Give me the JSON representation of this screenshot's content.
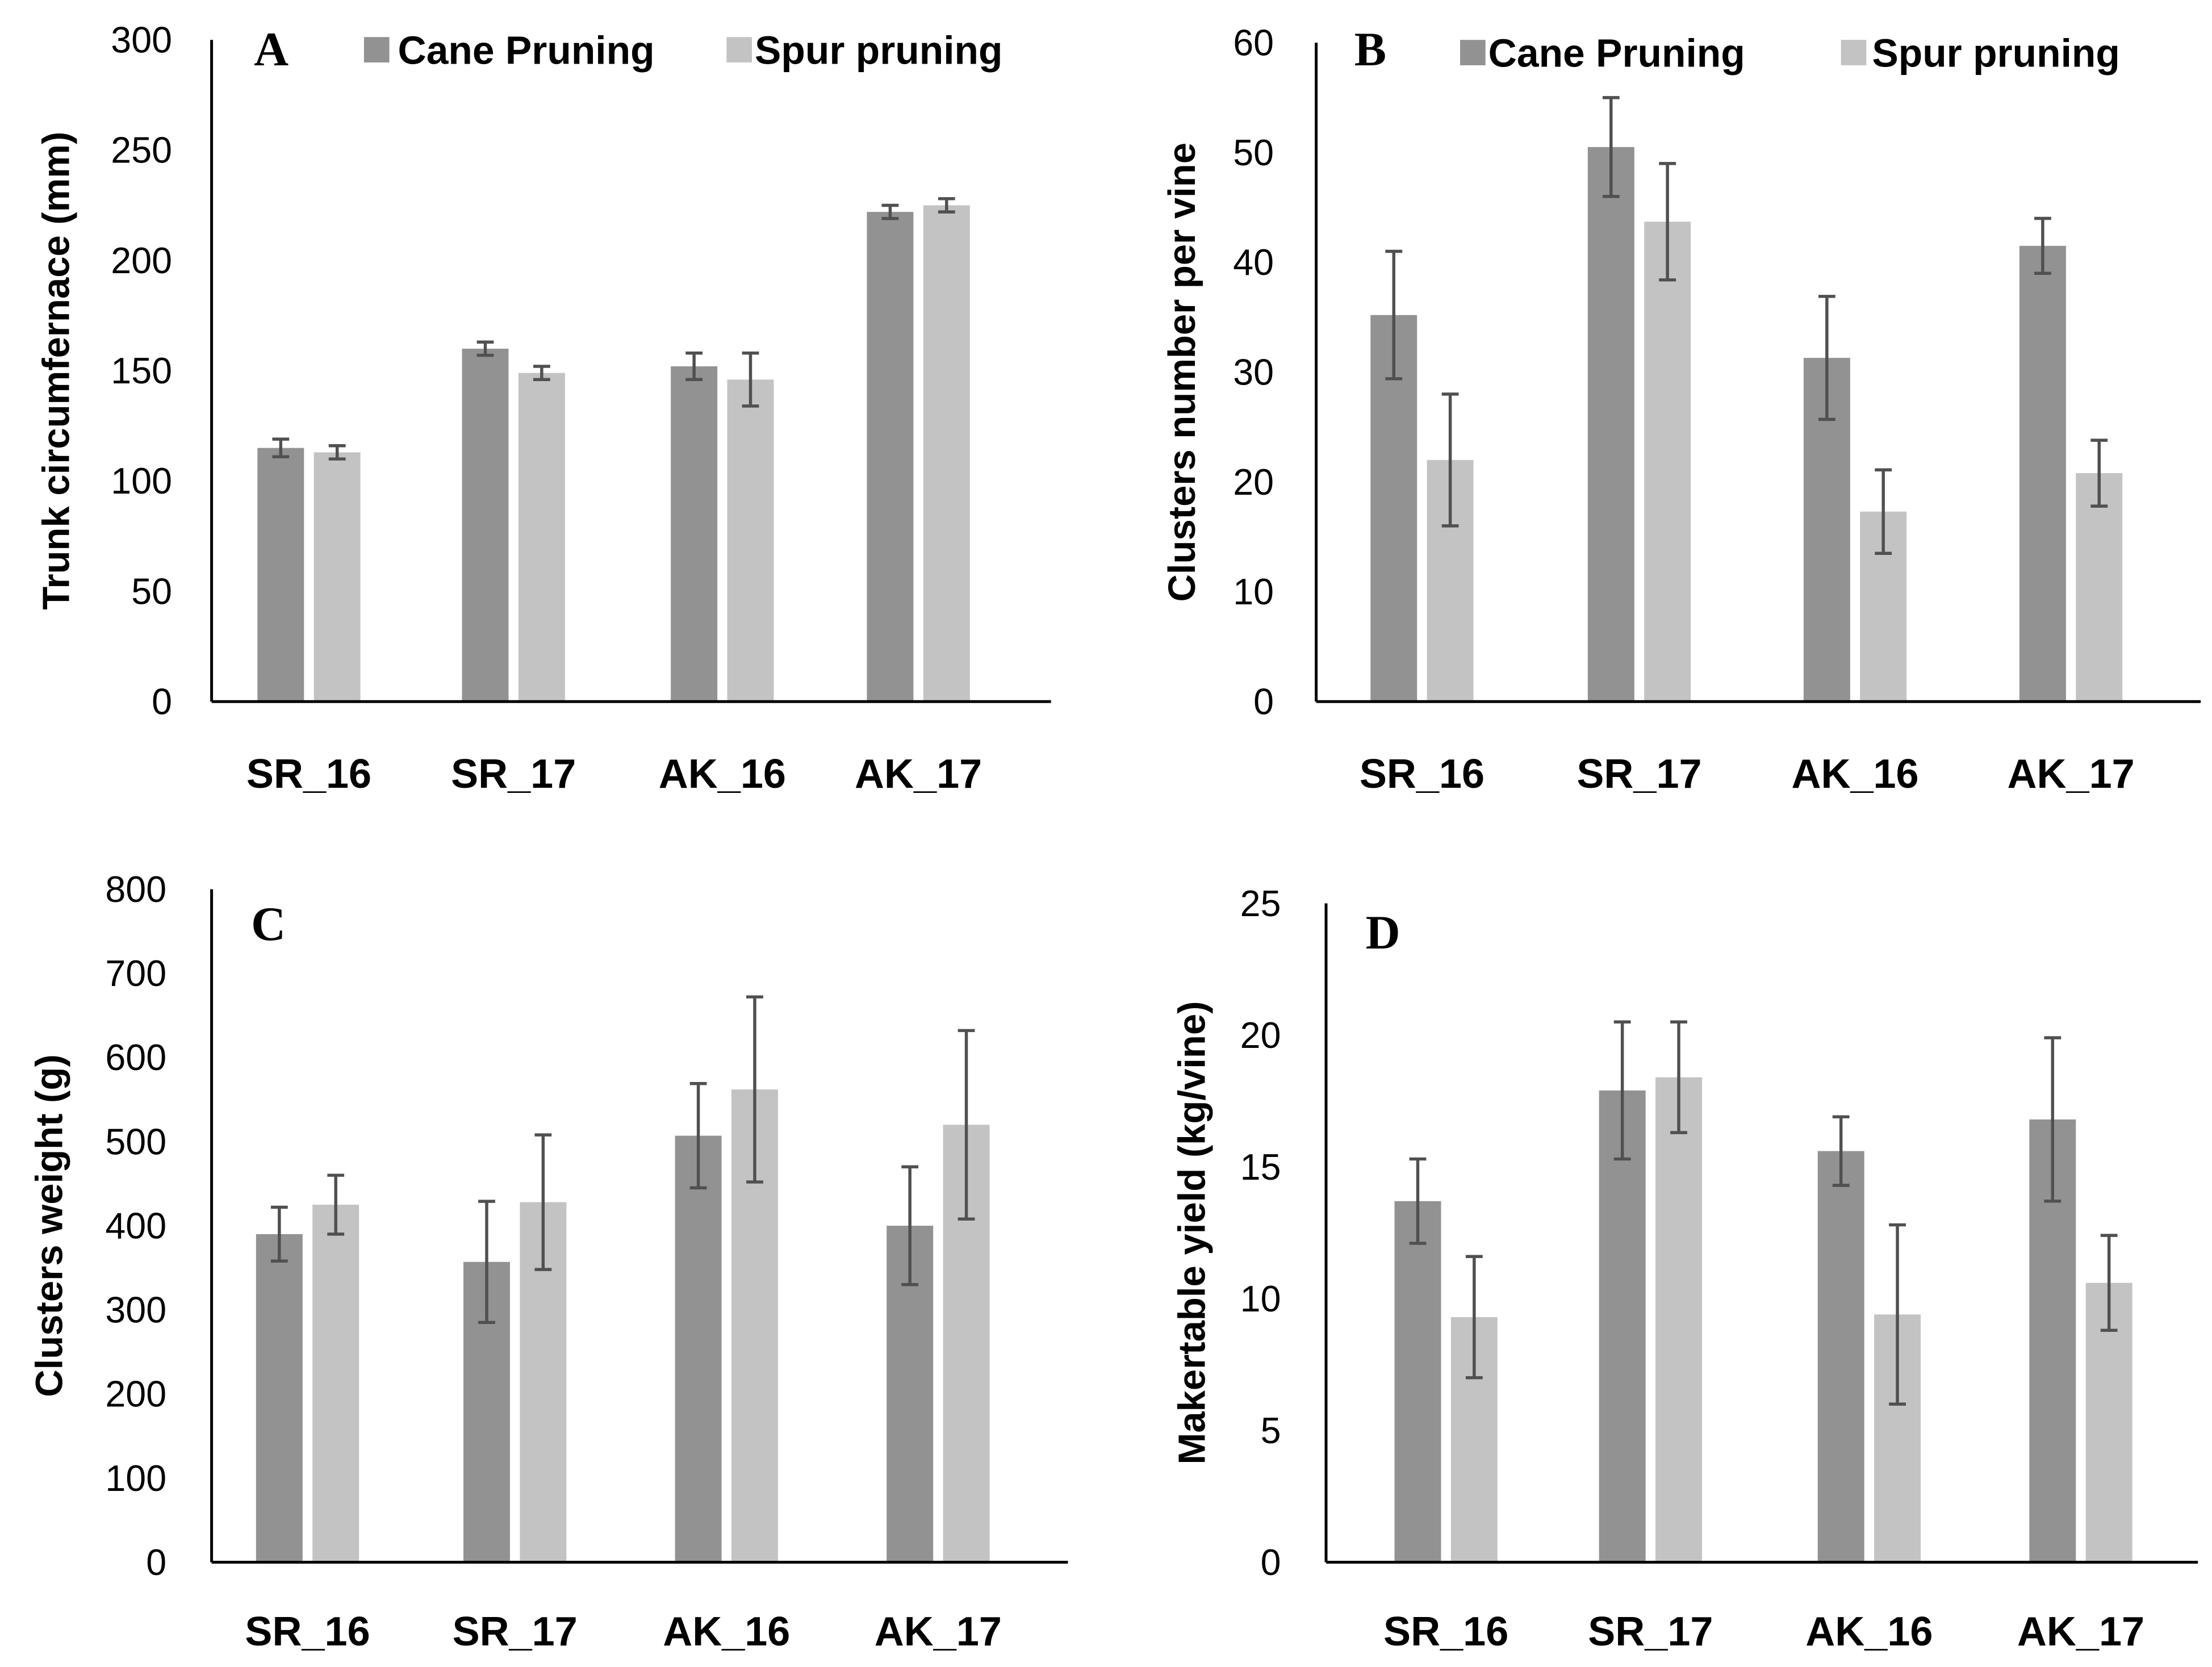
{
  "colors": {
    "cane": "#929292",
    "spur": "#c3c3c3",
    "error": "#505050",
    "axis": "#000000"
  },
  "legend": {
    "cane": "Cane Pruning",
    "spur": "Spur pruning"
  },
  "chart_data": [
    {
      "type": "bar",
      "panel": "A",
      "ylabel": "Trunk circumfernace (mm)",
      "ylim": [
        0,
        300
      ],
      "yticks": [
        0,
        50,
        100,
        150,
        200,
        250,
        300
      ],
      "categories": [
        "SR_16",
        "SR_17",
        "AK_16",
        "AK_17"
      ],
      "legend": true,
      "series": [
        {
          "name": "Cane Pruning",
          "values": [
            115,
            160,
            152,
            222
          ],
          "errors": [
            4,
            3,
            6,
            3
          ]
        },
        {
          "name": "Spur pruning",
          "values": [
            113,
            149,
            146,
            225
          ],
          "errors": [
            3,
            3,
            12,
            3
          ]
        }
      ]
    },
    {
      "type": "bar",
      "panel": "B",
      "ylabel": "Clusters number per vine",
      "ylim": [
        0,
        60
      ],
      "yticks": [
        0,
        10,
        20,
        30,
        40,
        50,
        60
      ],
      "categories": [
        "SR_16",
        "SR_17",
        "AK_16",
        "AK_17"
      ],
      "legend": true,
      "series": [
        {
          "name": "Cane Pruning",
          "values": [
            35.2,
            50.5,
            31.3,
            41.5
          ],
          "errors": [
            5.8,
            4.5,
            5.6,
            2.5
          ]
        },
        {
          "name": "Spur pruning",
          "values": [
            22,
            43.7,
            17.3,
            20.8
          ],
          "errors": [
            6,
            5.3,
            3.8,
            3
          ]
        }
      ]
    },
    {
      "type": "bar",
      "panel": "C",
      "ylabel": "Clusters weight (g)",
      "ylim": [
        0,
        800
      ],
      "yticks": [
        0,
        100,
        200,
        300,
        400,
        500,
        600,
        700,
        800
      ],
      "categories": [
        "SR_16",
        "SR_17",
        "AK_16",
        "AK_17"
      ],
      "legend": false,
      "series": [
        {
          "name": "Cane Pruning",
          "values": [
            390,
            357,
            507,
            400
          ],
          "errors": [
            32,
            72,
            62,
            70
          ]
        },
        {
          "name": "Spur pruning",
          "values": [
            425,
            428,
            562,
            520
          ],
          "errors": [
            35,
            80,
            110,
            112
          ]
        }
      ]
    },
    {
      "type": "bar",
      "panel": "D",
      "ylabel": "Makertable yield (kg/vine)",
      "ylim": [
        0,
        25
      ],
      "yticks": [
        0,
        5,
        10,
        15,
        20,
        25
      ],
      "categories": [
        "SR_16",
        "SR_17",
        "AK_16",
        "AK_17"
      ],
      "legend": false,
      "series": [
        {
          "name": "Cane Pruning",
          "values": [
            13.7,
            17.9,
            15.6,
            16.8
          ],
          "errors": [
            1.6,
            2.6,
            1.3,
            3.1
          ]
        },
        {
          "name": "Spur pruning",
          "values": [
            9.3,
            18.4,
            9.4,
            10.6
          ],
          "errors": [
            2.3,
            2.1,
            3.4,
            1.8
          ]
        }
      ]
    }
  ]
}
